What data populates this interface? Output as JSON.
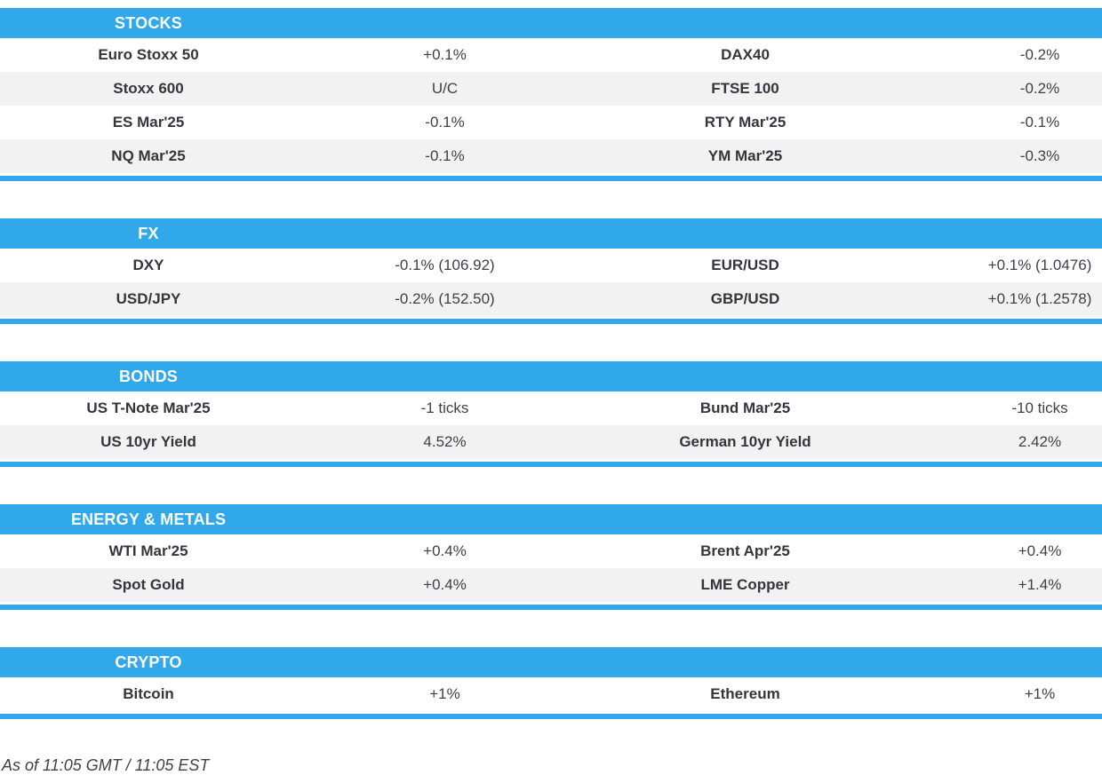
{
  "colors": {
    "accent": "#31a8ea",
    "row_stripe": "#f2f2f2",
    "label_text": "#35353d",
    "value_text": "#3f3f48",
    "header_text": "#ffffff"
  },
  "chart_data": {
    "type": "table",
    "layout": "two instrument/value column pairs per row, section header bars, alternating row stripes",
    "sections": [
      {
        "title": "STOCKS",
        "rows": [
          {
            "left_label": "Euro Stoxx 50",
            "left_value": "+0.1%",
            "right_label": "DAX40",
            "right_value": "-0.2%"
          },
          {
            "left_label": "Stoxx 600",
            "left_value": "U/C",
            "right_label": "FTSE 100",
            "right_value": "-0.2%"
          },
          {
            "left_label": "ES Mar'25",
            "left_value": "-0.1%",
            "right_label": "RTY Mar'25",
            "right_value": "-0.1%"
          },
          {
            "left_label": "NQ Mar'25",
            "left_value": "-0.1%",
            "right_label": "YM Mar'25",
            "right_value": "-0.3%"
          }
        ]
      },
      {
        "title": "FX",
        "rows": [
          {
            "left_label": "DXY",
            "left_value": "-0.1% (106.92)",
            "right_label": "EUR/USD",
            "right_value": "+0.1% (1.0476)"
          },
          {
            "left_label": "USD/JPY",
            "left_value": "-0.2% (152.50)",
            "right_label": "GBP/USD",
            "right_value": "+0.1% (1.2578)"
          }
        ]
      },
      {
        "title": "BONDS",
        "rows": [
          {
            "left_label": "US T-Note Mar'25",
            "left_value": "-1 ticks",
            "right_label": "Bund Mar'25",
            "right_value": "-10 ticks"
          },
          {
            "left_label": "US 10yr Yield",
            "left_value": "4.52%",
            "right_label": "German 10yr Yield",
            "right_value": "2.42%"
          }
        ]
      },
      {
        "title": "ENERGY & METALS",
        "rows": [
          {
            "left_label": "WTI Mar'25",
            "left_value": "+0.4%",
            "right_label": "Brent Apr'25",
            "right_value": "+0.4%"
          },
          {
            "left_label": "Spot Gold",
            "left_value": "+0.4%",
            "right_label": "LME Copper",
            "right_value": "+1.4%"
          }
        ]
      },
      {
        "title": "CRYPTO",
        "rows": [
          {
            "left_label": "Bitcoin",
            "left_value": "+1%",
            "right_label": "Ethereum",
            "right_value": "+1%"
          }
        ]
      }
    ],
    "footer_note": "As of 11:05 GMT / 11:05 EST"
  }
}
